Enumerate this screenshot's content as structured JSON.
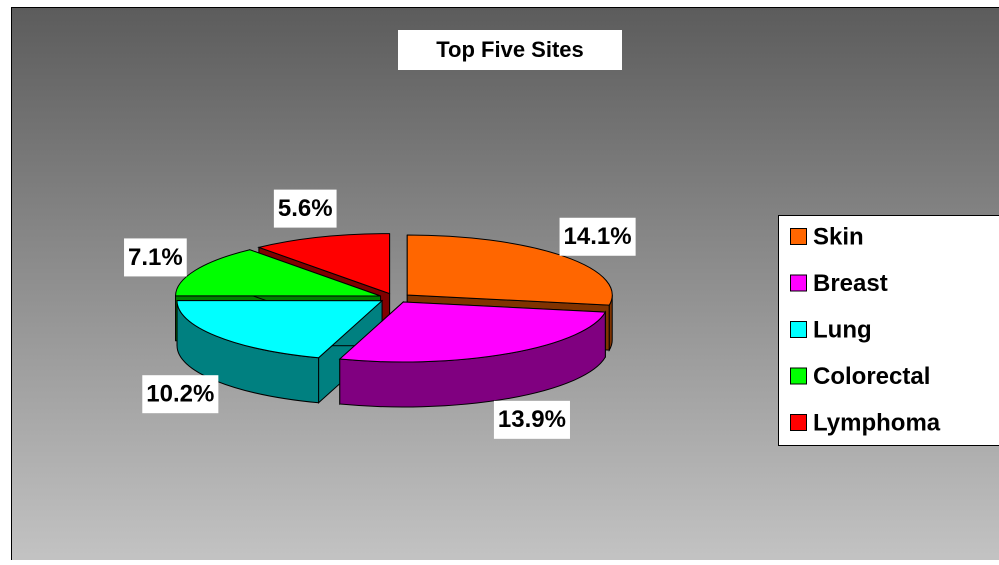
{
  "chart_data": {
    "type": "pie",
    "title": "Top Five Sites",
    "categories": [
      "Skin",
      "Breast",
      "Lung",
      "Colorectal",
      "Lymphoma"
    ],
    "values": [
      14.1,
      13.9,
      10.2,
      7.1,
      5.6
    ],
    "value_labels": [
      "14.1%",
      "13.9%",
      "10.2%",
      "7.1%",
      "5.6%"
    ],
    "colors": [
      "#ff6600",
      "#ff00ff",
      "#00ffff",
      "#00ff00",
      "#ff0000"
    ],
    "legend": "right"
  }
}
